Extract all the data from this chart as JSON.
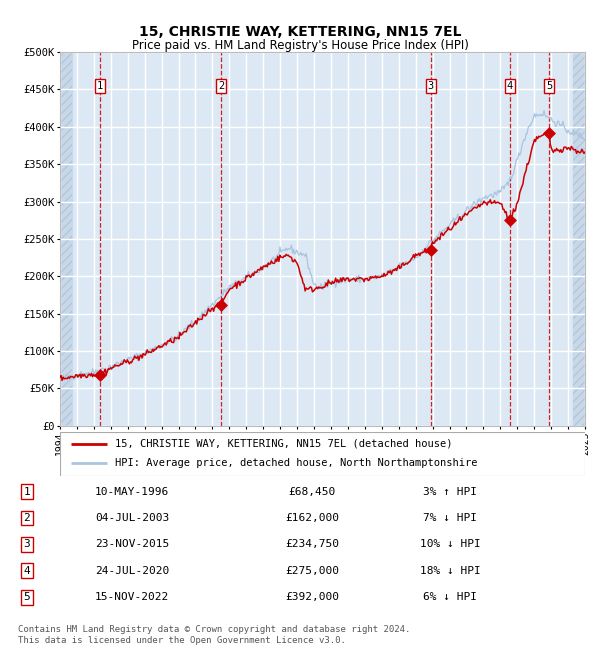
{
  "title": "15, CHRISTIE WAY, KETTERING, NN15 7EL",
  "subtitle": "Price paid vs. HM Land Registry's House Price Index (HPI)",
  "x_start_year": 1994,
  "x_end_year": 2025,
  "y_min": 0,
  "y_max": 500000,
  "y_ticks": [
    0,
    50000,
    100000,
    150000,
    200000,
    250000,
    300000,
    350000,
    400000,
    450000,
    500000
  ],
  "y_tick_labels": [
    "£0",
    "£50K",
    "£100K",
    "£150K",
    "£200K",
    "£250K",
    "£300K",
    "£350K",
    "£400K",
    "£450K",
    "£500K"
  ],
  "plot_bg_color": "#dce9f5",
  "grid_color": "#ffffff",
  "hpi_line_color": "#aac4e0",
  "price_line_color": "#cc0000",
  "sale_marker_color": "#cc0000",
  "vline_color": "#cc0000",
  "sale_points": [
    {
      "year": 1996.36,
      "price": 68450,
      "label": "1"
    },
    {
      "year": 2003.5,
      "price": 162000,
      "label": "2"
    },
    {
      "year": 2015.9,
      "price": 234750,
      "label": "3"
    },
    {
      "year": 2020.56,
      "price": 275000,
      "label": "4"
    },
    {
      "year": 2022.88,
      "price": 392000,
      "label": "5"
    }
  ],
  "legend_entries": [
    {
      "label": "15, CHRISTIE WAY, KETTERING, NN15 7EL (detached house)",
      "color": "#cc0000"
    },
    {
      "label": "HPI: Average price, detached house, North Northamptonshire",
      "color": "#aac4e0"
    }
  ],
  "table_rows": [
    {
      "num": "1",
      "date": "10-MAY-1996",
      "price": "£68,450",
      "hpi": "3% ↑ HPI"
    },
    {
      "num": "2",
      "date": "04-JUL-2003",
      "price": "£162,000",
      "hpi": "7% ↓ HPI"
    },
    {
      "num": "3",
      "date": "23-NOV-2015",
      "price": "£234,750",
      "hpi": "10% ↓ HPI"
    },
    {
      "num": "4",
      "date": "24-JUL-2020",
      "price": "£275,000",
      "hpi": "18% ↓ HPI"
    },
    {
      "num": "5",
      "date": "15-NOV-2022",
      "price": "£392,000",
      "hpi": "6% ↓ HPI"
    }
  ],
  "footer": "Contains HM Land Registry data © Crown copyright and database right 2024.\nThis data is licensed under the Open Government Licence v3.0."
}
